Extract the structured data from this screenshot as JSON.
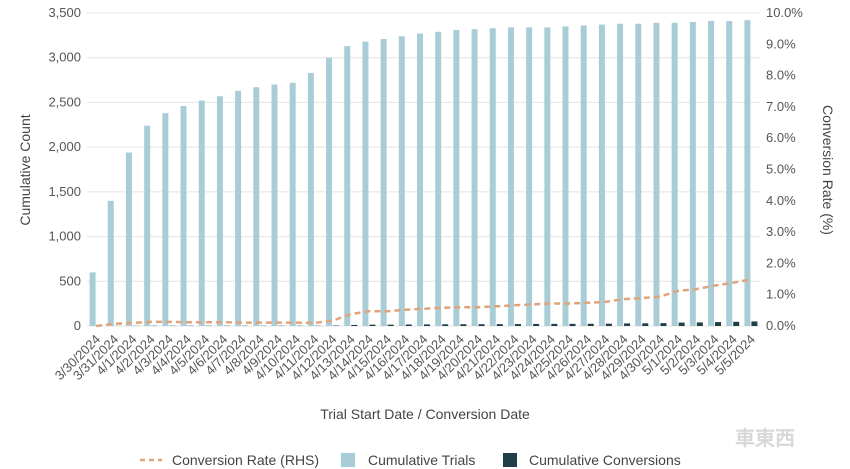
{
  "chart_data": {
    "type": "bar",
    "title": "",
    "xlabel": "Trial Start Date / Conversion Date",
    "ylabel": "Cumulative Count",
    "y2label": "Conversion Rate (%)",
    "ylim": [
      0,
      3500
    ],
    "y2lim": [
      0,
      10
    ],
    "yticks": [
      "0",
      "500",
      "1,000",
      "1,500",
      "2,000",
      "2,500",
      "3,000",
      "3,500"
    ],
    "y2ticks": [
      "0.0%",
      "1.0%",
      "2.0%",
      "3.0%",
      "4.0%",
      "5.0%",
      "6.0%",
      "7.0%",
      "8.0%",
      "9.0%",
      "10.0%"
    ],
    "grid": true,
    "legend_position": "bottom",
    "categories": [
      "3/30/2024",
      "3/31/2024",
      "4/1/2024",
      "4/2/2024",
      "4/3/2024",
      "4/4/2024",
      "4/5/2024",
      "4/6/2024",
      "4/7/2024",
      "4/8/2024",
      "4/9/2024",
      "4/10/2024",
      "4/11/2024",
      "4/12/2024",
      "4/13/2024",
      "4/14/2024",
      "4/15/2024",
      "4/16/2024",
      "4/17/2024",
      "4/18/2024",
      "4/19/2024",
      "4/20/2024",
      "4/21/2024",
      "4/22/2024",
      "4/23/2024",
      "4/24/2024",
      "4/25/2024",
      "4/26/2024",
      "4/27/2024",
      "4/28/2024",
      "4/29/2024",
      "4/30/2024",
      "5/1/2024",
      "5/2/2024",
      "5/3/2024",
      "5/4/2024",
      "5/5/2024"
    ],
    "series": [
      {
        "name": "Cumulative Trials",
        "axis": "left",
        "kind": "bar",
        "color": "#a9cdd6",
        "values": [
          600,
          1400,
          1940,
          2240,
          2380,
          2460,
          2520,
          2570,
          2630,
          2670,
          2700,
          2720,
          2830,
          3000,
          3130,
          3180,
          3210,
          3240,
          3270,
          3290,
          3310,
          3320,
          3330,
          3340,
          3340,
          3340,
          3350,
          3360,
          3370,
          3380,
          3380,
          3390,
          3390,
          3400,
          3410,
          3410,
          3420
        ]
      },
      {
        "name": "Cumulative Conversions",
        "axis": "left",
        "kind": "bar",
        "color": "#1f3f47",
        "values": [
          0,
          1,
          2,
          3,
          3,
          3,
          3,
          3,
          3,
          3,
          3,
          3,
          3,
          5,
          12,
          15,
          15,
          17,
          18,
          19,
          20,
          20,
          21,
          22,
          23,
          24,
          24,
          25,
          26,
          29,
          30,
          32,
          38,
          40,
          44,
          47,
          51
        ]
      },
      {
        "name": "Conversion Rate (RHS)",
        "axis": "right",
        "kind": "line",
        "color": "#e0a47a",
        "values": [
          0.0,
          0.07,
          0.1,
          0.13,
          0.13,
          0.12,
          0.12,
          0.12,
          0.11,
          0.11,
          0.11,
          0.11,
          0.1,
          0.17,
          0.38,
          0.47,
          0.47,
          0.52,
          0.55,
          0.58,
          0.6,
          0.6,
          0.63,
          0.66,
          0.69,
          0.72,
          0.72,
          0.74,
          0.77,
          0.86,
          0.89,
          0.94,
          1.12,
          1.18,
          1.29,
          1.38,
          1.49
        ]
      }
    ],
    "legend": [
      "Conversion Rate (RHS)",
      "Cumulative Trials",
      "Cumulative Conversions"
    ]
  }
}
